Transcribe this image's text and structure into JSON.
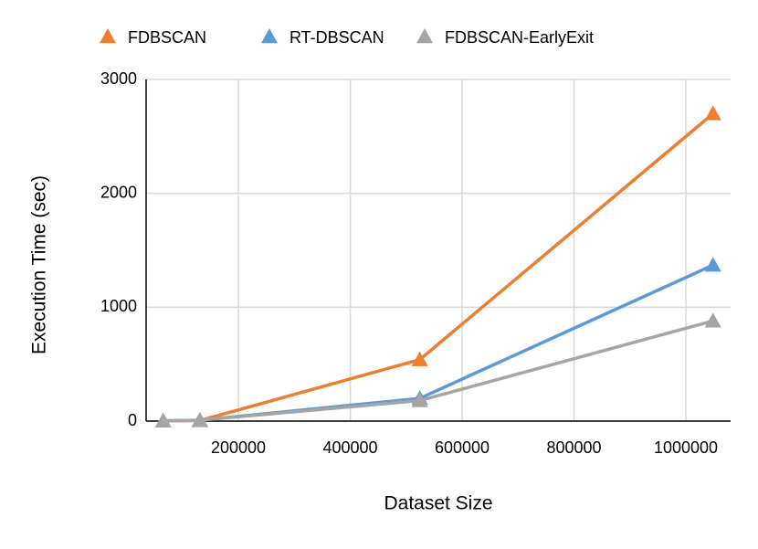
{
  "chart_data": {
    "type": "line",
    "xlabel": "Dataset Size",
    "ylabel": "Execution Time (sec)",
    "x": [
      65536,
      131072,
      524288,
      1048576
    ],
    "series": [
      {
        "name": "FDBSCAN",
        "color": "#ed7d31",
        "values": [
          2,
          5,
          540,
          2700
        ]
      },
      {
        "name": "RT-DBSCAN",
        "color": "#5b9bd5",
        "values": [
          2,
          8,
          200,
          1370
        ]
      },
      {
        "name": "FDBSCAN-EarlyExit",
        "color": "#a5a5a5",
        "values": [
          2,
          8,
          180,
          880
        ]
      }
    ],
    "xlim": [
      35000,
      1080000
    ],
    "xticks": [
      200000,
      400000,
      600000,
      800000,
      1000000
    ],
    "ylim": [
      0,
      3000
    ],
    "yticks": [
      0,
      1000,
      2000,
      3000
    ],
    "grid": true,
    "legend": "top"
  }
}
